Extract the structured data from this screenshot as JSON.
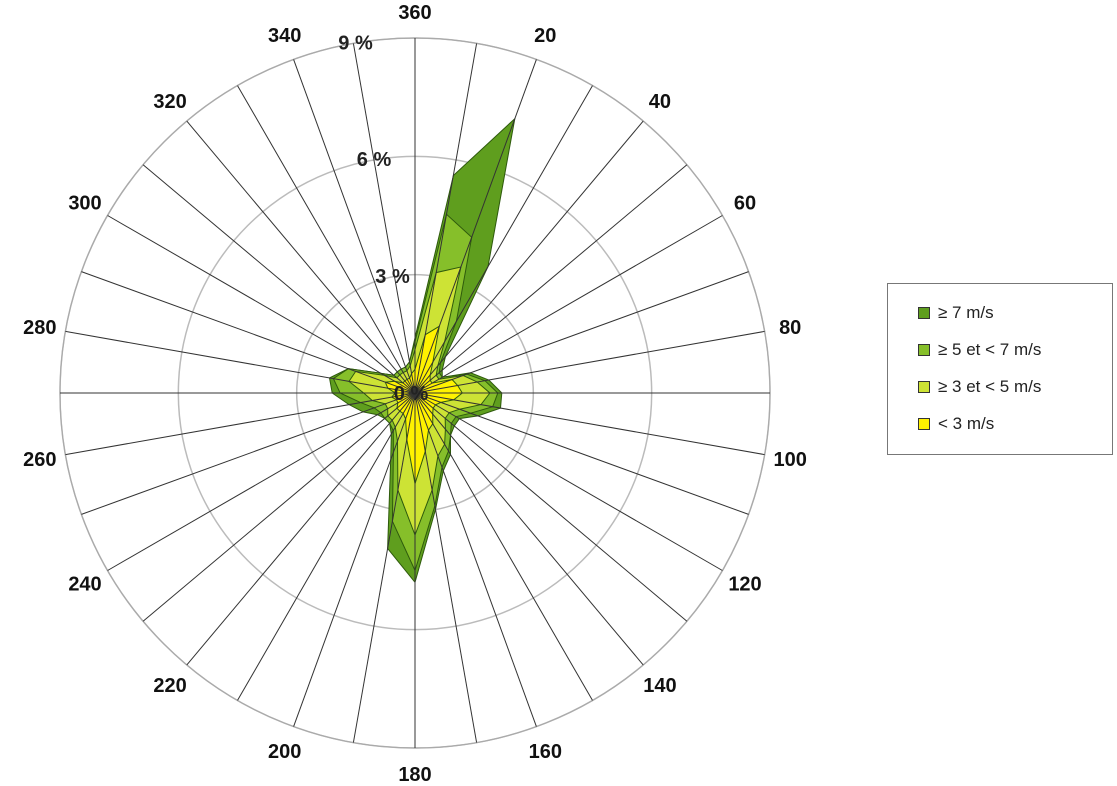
{
  "chart_data": {
    "type": "radar",
    "directions": [
      0,
      10,
      20,
      30,
      40,
      50,
      60,
      70,
      80,
      90,
      100,
      110,
      120,
      130,
      140,
      150,
      160,
      170,
      180,
      190,
      200,
      210,
      220,
      230,
      240,
      250,
      260,
      270,
      280,
      290,
      300,
      310,
      320,
      330,
      340,
      350
    ],
    "direction_labels": [
      "360",
      "20",
      "40",
      "60",
      "80",
      "100",
      "120",
      "140",
      "160",
      "180",
      "200",
      "220",
      "240",
      "260",
      "280",
      "300",
      "320",
      "340"
    ],
    "radial_ticks": [
      "0 %",
      "3 %",
      "6 %",
      "9 %"
    ],
    "radial_values": [
      0,
      3,
      6,
      9
    ],
    "rmax": 9,
    "stacked": true,
    "series": [
      {
        "name": "< 3 m/s",
        "color": "#fff200",
        "values": [
          0.6,
          1.5,
          1.8,
          0.9,
          0.6,
          0.5,
          0.5,
          1.0,
          1.1,
          1.2,
          1.0,
          0.7,
          0.6,
          0.6,
          0.7,
          0.9,
          1.0,
          1.5,
          2.3,
          1.2,
          0.7,
          0.6,
          0.6,
          0.6,
          0.5,
          0.5,
          0.6,
          0.5,
          0.7,
          0.8,
          0.6,
          0.4,
          0.4,
          0.4,
          0.4,
          0.5
        ]
      },
      {
        "name": "≥ 3 et < 5 m/s",
        "color": "#cde335",
        "values": [
          0.5,
          1.6,
          1.6,
          0.6,
          0.3,
          0.2,
          0.2,
          0.3,
          0.5,
          0.7,
          0.7,
          0.5,
          0.4,
          0.4,
          0.5,
          0.6,
          0.7,
          1.0,
          1.3,
          1.3,
          0.6,
          0.4,
          0.3,
          0.3,
          0.3,
          0.3,
          0.5,
          0.8,
          1.0,
          0.8,
          0.3,
          0.2,
          0.2,
          0.2,
          0.2,
          0.2
        ]
      },
      {
        "name": "≥ 5 et < 7 m/s",
        "color": "#86bf2a",
        "values": [
          0.2,
          1.5,
          0.8,
          0.6,
          0.1,
          0.1,
          0.1,
          0.1,
          0.2,
          0.2,
          0.3,
          0.3,
          0.2,
          0.2,
          0.2,
          0.2,
          0.3,
          0.4,
          0.9,
          0.8,
          0.3,
          0.1,
          0.1,
          0.1,
          0.2,
          0.3,
          0.3,
          0.6,
          0.4,
          0.2,
          0.1,
          0.1,
          0.1,
          0.1,
          0.1,
          0.1
        ]
      },
      {
        "name": "≥ 7 m/s",
        "color": "#5f9e1e",
        "values": [
          0.1,
          1.0,
          3.2,
          1.6,
          0.2,
          0.1,
          0.0,
          0.1,
          0.1,
          0.1,
          0.2,
          0.2,
          0.1,
          0.1,
          0.0,
          0.1,
          0.1,
          0.1,
          0.3,
          0.7,
          0.2,
          0.1,
          0.0,
          0.0,
          0.1,
          0.3,
          0.3,
          0.2,
          0.1,
          0.0,
          0.0,
          0.0,
          0.0,
          0.0,
          0.0,
          0.0
        ]
      }
    ],
    "legend": {
      "placement": "right",
      "entries": [
        "≥ 7 m/s",
        "≥ 5 et < 7 m/s",
        "≥ 3 et < 5 m/s",
        "< 3 m/s"
      ],
      "colors": [
        "#5f9e1e",
        "#86bf2a",
        "#cde335",
        "#fff200"
      ]
    },
    "title": "",
    "grid": true
  },
  "colors": {
    "spoke": "#333333",
    "ring": "#bbbbbb",
    "outline": "#2e5a0c"
  }
}
